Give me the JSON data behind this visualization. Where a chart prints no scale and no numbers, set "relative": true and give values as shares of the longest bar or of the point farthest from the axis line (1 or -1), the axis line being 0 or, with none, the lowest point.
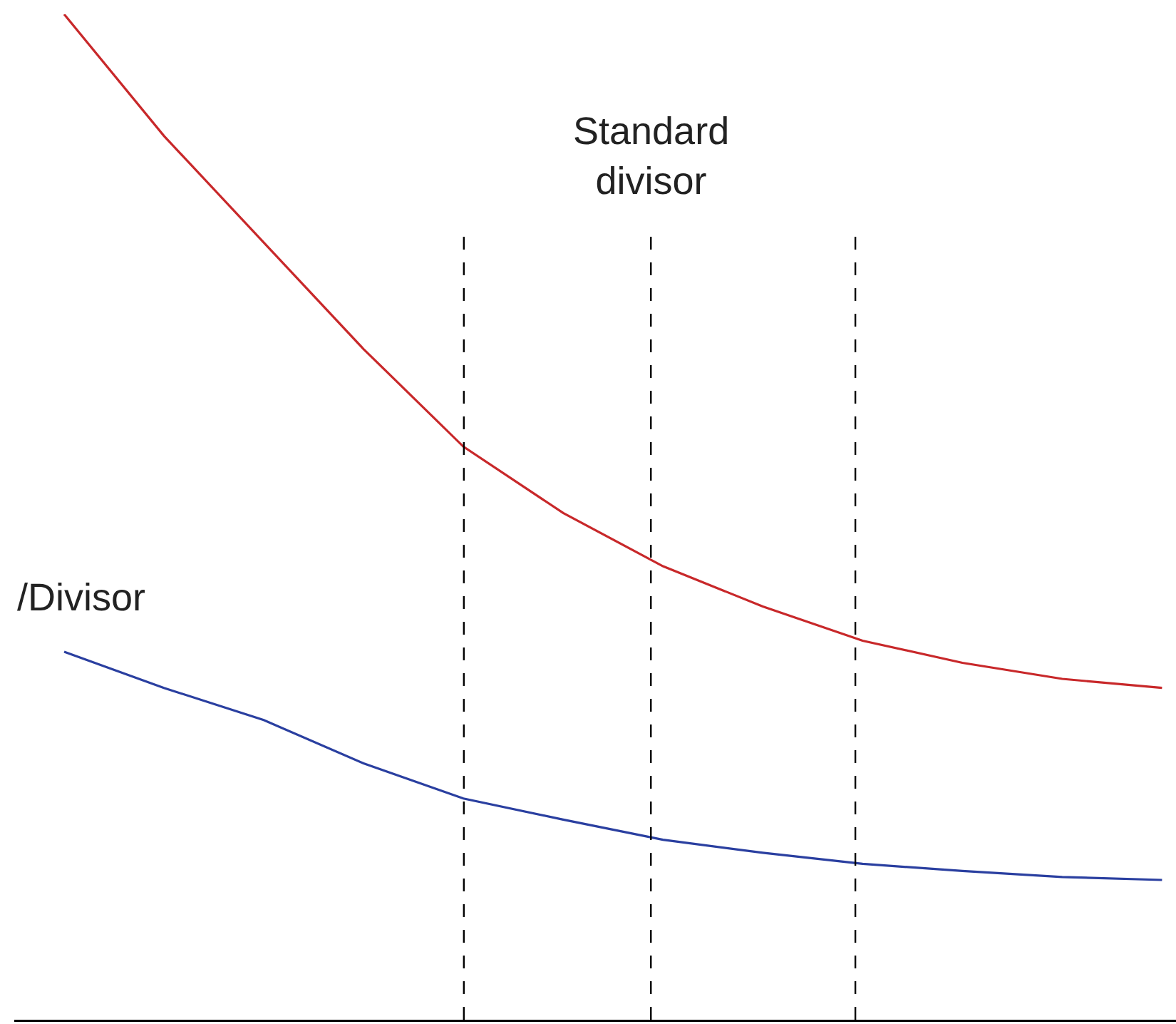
{
  "chart_data": {
    "type": "line",
    "relative": true,
    "categories": [
      null,
      null,
      null,
      null,
      null,
      null,
      null,
      null,
      null,
      null,
      null,
      null
    ],
    "series": [
      {
        "color": "#c8282a",
        "values": [
          1,
          0.879,
          0.773,
          0.667,
          0.57,
          0.504,
          0.451,
          0.411,
          0.377,
          0.355,
          0.339,
          0.33
        ]
      },
      {
        "color": "#2a3fa0",
        "values": [
          0.366,
          0.33,
          0.298,
          0.255,
          0.22,
          0.199,
          0.179,
          0.166,
          0.155,
          0.148,
          0.142,
          0.139
        ]
      }
    ],
    "annotations": [
      "Standard divisor",
      "/Divisor"
    ],
    "marker": "none",
    "line_style": "solid"
  }
}
